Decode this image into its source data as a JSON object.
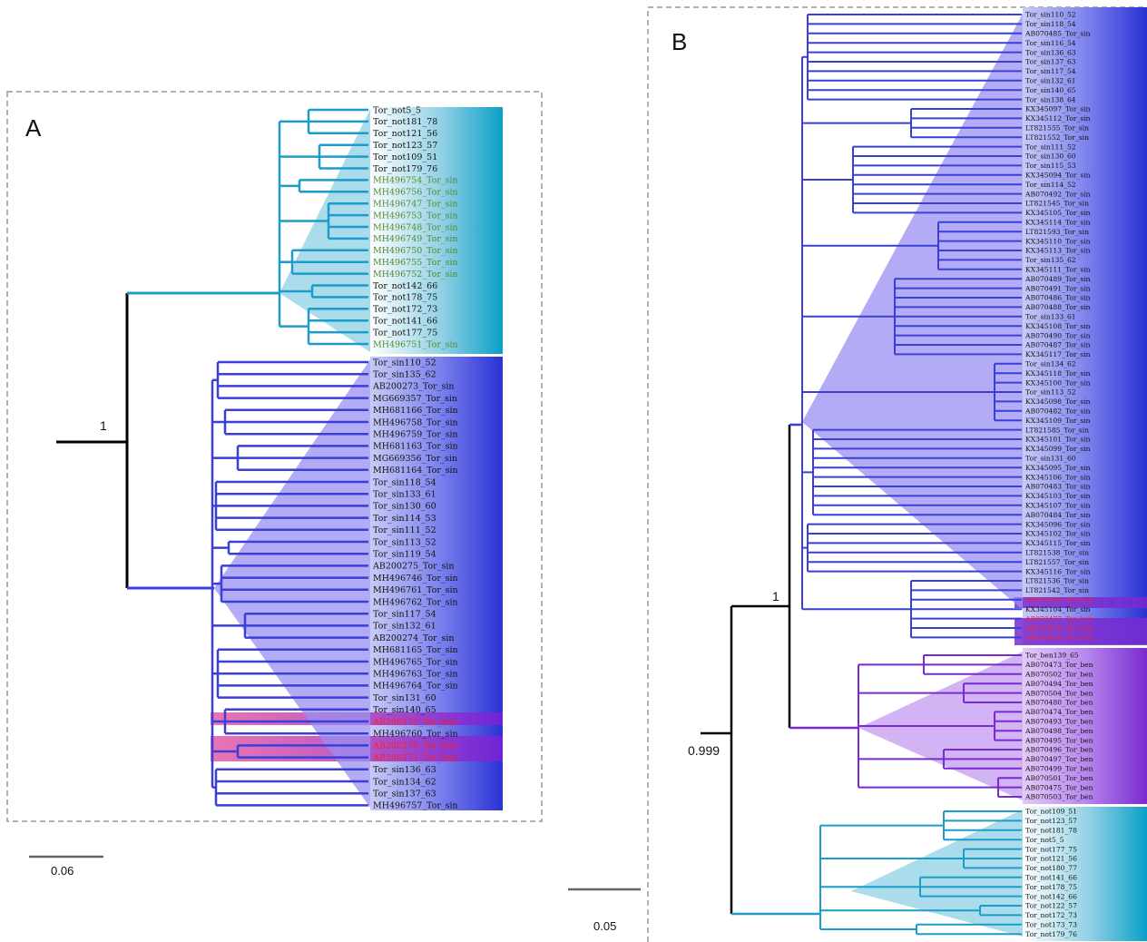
{
  "colors": {
    "notus": "#1c9cc8",
    "sinensis": "#3a3fd6",
    "benedicti": "#7a2ad0",
    "tip_default": "#111111",
    "tip_green": "#4f8a2e",
    "tip_red": "#ff1f1f",
    "root": "#000000",
    "frame": "#999999"
  },
  "panel_a": {
    "letter": "A",
    "support_label": "1",
    "scale_label": "0.06",
    "notus_clade": [
      {
        "label": "Tor_not5_5",
        "tone": "default"
      },
      {
        "label": "Tor_not181_78",
        "tone": "default"
      },
      {
        "label": "Tor_not121_56",
        "tone": "default"
      },
      {
        "label": "Tor_not123_57",
        "tone": "default"
      },
      {
        "label": "Tor_not109_51",
        "tone": "default"
      },
      {
        "label": "Tor_not179_76",
        "tone": "default"
      },
      {
        "label": "MH496754_Tor_sin",
        "tone": "green"
      },
      {
        "label": "MH496756_Tor_sin",
        "tone": "green"
      },
      {
        "label": "MH496747_Tor_sin",
        "tone": "green"
      },
      {
        "label": "MH496753_Tor_sin",
        "tone": "green"
      },
      {
        "label": "MH496748_Tor_sin",
        "tone": "green"
      },
      {
        "label": "MH496749_Tor_sin",
        "tone": "green"
      },
      {
        "label": "MH496750_Tor_sin",
        "tone": "green"
      },
      {
        "label": "MH496755_Tor_sin",
        "tone": "green"
      },
      {
        "label": "MH496752_Tor_sin",
        "tone": "green"
      },
      {
        "label": "Tor_not142_66",
        "tone": "default"
      },
      {
        "label": "Tor_not178_75",
        "tone": "default"
      },
      {
        "label": "Tor_not172_73",
        "tone": "default"
      },
      {
        "label": "Tor_not141_66",
        "tone": "default"
      },
      {
        "label": "Tor_not177_75",
        "tone": "default"
      },
      {
        "label": "MH496751_Tor_sin",
        "tone": "green"
      }
    ],
    "sinensis_clade": [
      {
        "label": "Tor_sin110_52",
        "tone": "default"
      },
      {
        "label": "Tor_sin135_62",
        "tone": "default"
      },
      {
        "label": "AB200273_Tor_sin",
        "tone": "default"
      },
      {
        "label": "MG669357_Tor_sin",
        "tone": "default"
      },
      {
        "label": "MH681166_Tor_sin",
        "tone": "default"
      },
      {
        "label": "MH496758_Tor_sin",
        "tone": "default"
      },
      {
        "label": "MH496759_Tor_sin",
        "tone": "default"
      },
      {
        "label": "MH681163_Tor_sin",
        "tone": "default"
      },
      {
        "label": "MG669356_Tor_sin",
        "tone": "default"
      },
      {
        "label": "MH681164_Tor_sin",
        "tone": "default"
      },
      {
        "label": "Tor_sin118_54",
        "tone": "default"
      },
      {
        "label": "Tor_sin133_61",
        "tone": "default"
      },
      {
        "label": "Tor_sin130_60",
        "tone": "default"
      },
      {
        "label": "Tor_sin114_53",
        "tone": "default"
      },
      {
        "label": "Tor_sin111_52",
        "tone": "default"
      },
      {
        "label": "Tor_sin113_52",
        "tone": "default"
      },
      {
        "label": "Tor_sin119_54",
        "tone": "default"
      },
      {
        "label": "AB200275_Tor_sin",
        "tone": "default"
      },
      {
        "label": "MH496746_Tor_sin",
        "tone": "default"
      },
      {
        "label": "MH496761_Tor_sin",
        "tone": "default"
      },
      {
        "label": "MH496762_Tor_sin",
        "tone": "default"
      },
      {
        "label": "Tor_sin117_54",
        "tone": "default"
      },
      {
        "label": "Tor_sin132_61",
        "tone": "default"
      },
      {
        "label": "AB200274_Tor_sin",
        "tone": "default"
      },
      {
        "label": "MH681165_Tor_sin",
        "tone": "default"
      },
      {
        "label": "MH496765_Tor_sin",
        "tone": "default"
      },
      {
        "label": "MH496763_Tor_sin",
        "tone": "default"
      },
      {
        "label": "MH496764_Tor_sin",
        "tone": "default"
      },
      {
        "label": "Tor_sin131_60",
        "tone": "default"
      },
      {
        "label": "Tor_sin140_65",
        "tone": "default"
      },
      {
        "label": "AB200272_Tor_ben",
        "tone": "red"
      },
      {
        "label": "MH496760_Tor_sin",
        "tone": "default"
      },
      {
        "label": "AB200270_Tor_ben",
        "tone": "red"
      },
      {
        "label": "AB200271_Tor_ben",
        "tone": "red"
      },
      {
        "label": "Tor_sin136_63",
        "tone": "default"
      },
      {
        "label": "Tor_sin134_62",
        "tone": "default"
      },
      {
        "label": "Tor_sin137_63",
        "tone": "default"
      },
      {
        "label": "MH496757_Tor_sin",
        "tone": "default"
      }
    ]
  },
  "panel_b": {
    "letter": "B",
    "support_label_top": "1",
    "support_label_root": "0.999",
    "scale_label": "0.05",
    "sinensis_clade": [
      {
        "label": "Tor_sin110_52",
        "tone": "default"
      },
      {
        "label": "Tor_sin118_54",
        "tone": "default"
      },
      {
        "label": "AB070485_Tor_sin",
        "tone": "default"
      },
      {
        "label": "Tor_sin116_54",
        "tone": "default"
      },
      {
        "label": "Tor_sin136_63",
        "tone": "default"
      },
      {
        "label": "Tor_sin137_63",
        "tone": "default"
      },
      {
        "label": "Tor_sin117_54",
        "tone": "default"
      },
      {
        "label": "Tor_sin132_61",
        "tone": "default"
      },
      {
        "label": "Tor_sin140_65",
        "tone": "default"
      },
      {
        "label": "Tor_sin138_64",
        "tone": "default"
      },
      {
        "label": "KX345097_Tor_sin",
        "tone": "default"
      },
      {
        "label": "KX345112_Tor_sin",
        "tone": "default"
      },
      {
        "label": "LT821555_Tor_sin",
        "tone": "default"
      },
      {
        "label": "LT821552_Tor_sin",
        "tone": "default"
      },
      {
        "label": "Tor_sin111_52",
        "tone": "default"
      },
      {
        "label": "Tor_sin130_60",
        "tone": "default"
      },
      {
        "label": "Tor_sin115_53",
        "tone": "default"
      },
      {
        "label": "KX345094_Tor_sin",
        "tone": "default"
      },
      {
        "label": "Tor_sin114_52",
        "tone": "default"
      },
      {
        "label": "AB070492_Tor_sin",
        "tone": "default"
      },
      {
        "label": "LT821545_Tor_sin",
        "tone": "default"
      },
      {
        "label": "KX345105_Tor_sin",
        "tone": "default"
      },
      {
        "label": "KX345114_Tor_sin",
        "tone": "default"
      },
      {
        "label": "LT821593_Tor_sin",
        "tone": "default"
      },
      {
        "label": "KX345110_Tor_sin",
        "tone": "default"
      },
      {
        "label": "KX345113_Tor_sin",
        "tone": "default"
      },
      {
        "label": "Tor_sin135_62",
        "tone": "default"
      },
      {
        "label": "KX345111_Tor_sin",
        "tone": "default"
      },
      {
        "label": "AB070489_Tor_sin",
        "tone": "default"
      },
      {
        "label": "AB070491_Tor_sin",
        "tone": "default"
      },
      {
        "label": "AB070486_Tor_sin",
        "tone": "default"
      },
      {
        "label": "AB070488_Tor_sin",
        "tone": "default"
      },
      {
        "label": "Tor_sin133_61",
        "tone": "default"
      },
      {
        "label": "KX345108_Tor_sin",
        "tone": "default"
      },
      {
        "label": "AB070490_Tor_sin",
        "tone": "default"
      },
      {
        "label": "AB070487_Tor_sin",
        "tone": "default"
      },
      {
        "label": "KX345117_Tor_sin",
        "tone": "default"
      },
      {
        "label": "Tor_sin134_62",
        "tone": "default"
      },
      {
        "label": "KX345118_Tor_sin",
        "tone": "default"
      },
      {
        "label": "KX345100_Tor_sin",
        "tone": "default"
      },
      {
        "label": "Tor_sin113_52",
        "tone": "default"
      },
      {
        "label": "KX345098_Tor_sin",
        "tone": "default"
      },
      {
        "label": "AB070482_Tor_sin",
        "tone": "default"
      },
      {
        "label": "KX345109_Tor_sin",
        "tone": "default"
      },
      {
        "label": "LT821585_Tor_sin",
        "tone": "default"
      },
      {
        "label": "KX345101_Tor_sin",
        "tone": "default"
      },
      {
        "label": "KX345099_Tor_sin",
        "tone": "default"
      },
      {
        "label": "Tor_sin131_60",
        "tone": "default"
      },
      {
        "label": "KX345095_Tor_sin",
        "tone": "default"
      },
      {
        "label": "KX345106_Tor_sin",
        "tone": "default"
      },
      {
        "label": "AB070483_Tor_sin",
        "tone": "default"
      },
      {
        "label": "KX345103_Tor_sin",
        "tone": "default"
      },
      {
        "label": "KX345107_Tor_sin",
        "tone": "default"
      },
      {
        "label": "AB070484_Tor_sin",
        "tone": "default"
      },
      {
        "label": "KX345096_Tor_sin",
        "tone": "default"
      },
      {
        "label": "KX345102_Tor_sin",
        "tone": "default"
      },
      {
        "label": "KX345115_Tor_sin",
        "tone": "default"
      },
      {
        "label": "LT821538_Tor_sin",
        "tone": "default"
      },
      {
        "label": "LT821557_Tor_sin",
        "tone": "default"
      },
      {
        "label": "KX345116_Tor_sin",
        "tone": "default"
      },
      {
        "label": "LT821536_Tor_sin",
        "tone": "default"
      },
      {
        "label": "LT821542_Tor_sin",
        "tone": "default"
      },
      {
        "label": "AB070476_Tor_ben",
        "tone": "red"
      },
      {
        "label": "KX345104_Tor_sin",
        "tone": "default"
      },
      {
        "label": "AB070477_Tor_ben",
        "tone": "red"
      },
      {
        "label": "AB070479_Tor_ben",
        "tone": "red"
      },
      {
        "label": "AB070478_Tor_ben",
        "tone": "red"
      }
    ],
    "benedicti_clade": [
      {
        "label": "Tor_ben139_65",
        "tone": "default"
      },
      {
        "label": "AB070473_Tor_ben",
        "tone": "default"
      },
      {
        "label": "AB070502_Tor_ben",
        "tone": "default"
      },
      {
        "label": "AB070494_Tor_ben",
        "tone": "default"
      },
      {
        "label": "AB070504_Tor_ben",
        "tone": "default"
      },
      {
        "label": "AB070480_Tor_ben",
        "tone": "default"
      },
      {
        "label": "AB070474_Tor_ben",
        "tone": "default"
      },
      {
        "label": "AB070493_Tor_ben",
        "tone": "default"
      },
      {
        "label": "AB070498_Tor_ben",
        "tone": "default"
      },
      {
        "label": "AB070495_Tor_ben",
        "tone": "default"
      },
      {
        "label": "AB070496_Tor_ben",
        "tone": "default"
      },
      {
        "label": "AB070497_Tor_ben",
        "tone": "default"
      },
      {
        "label": "AB070499_Tor_ben",
        "tone": "default"
      },
      {
        "label": "AB070501_Tor_ben",
        "tone": "default"
      },
      {
        "label": "AB070475_Tor_ben",
        "tone": "default"
      },
      {
        "label": "AB070503_Tor_ben",
        "tone": "default"
      }
    ],
    "notus_clade": [
      {
        "label": "Tor_not109_51",
        "tone": "default"
      },
      {
        "label": "Tor_not123_57",
        "tone": "default"
      },
      {
        "label": "Tor_not181_78",
        "tone": "default"
      },
      {
        "label": "Tor_not5_5",
        "tone": "default"
      },
      {
        "label": "Tor_not177_75",
        "tone": "default"
      },
      {
        "label": "Tor_not121_56",
        "tone": "default"
      },
      {
        "label": "Tor_not180_77",
        "tone": "default"
      },
      {
        "label": "Tor_not141_66",
        "tone": "default"
      },
      {
        "label": "Tor_not178_75",
        "tone": "default"
      },
      {
        "label": "Tor_not142_66",
        "tone": "default"
      },
      {
        "label": "Tor_not122_57",
        "tone": "default"
      },
      {
        "label": "Tor_not172_73",
        "tone": "default"
      },
      {
        "label": "Tor_not173_73",
        "tone": "default"
      },
      {
        "label": "Tor_not179_76",
        "tone": "default"
      }
    ]
  }
}
